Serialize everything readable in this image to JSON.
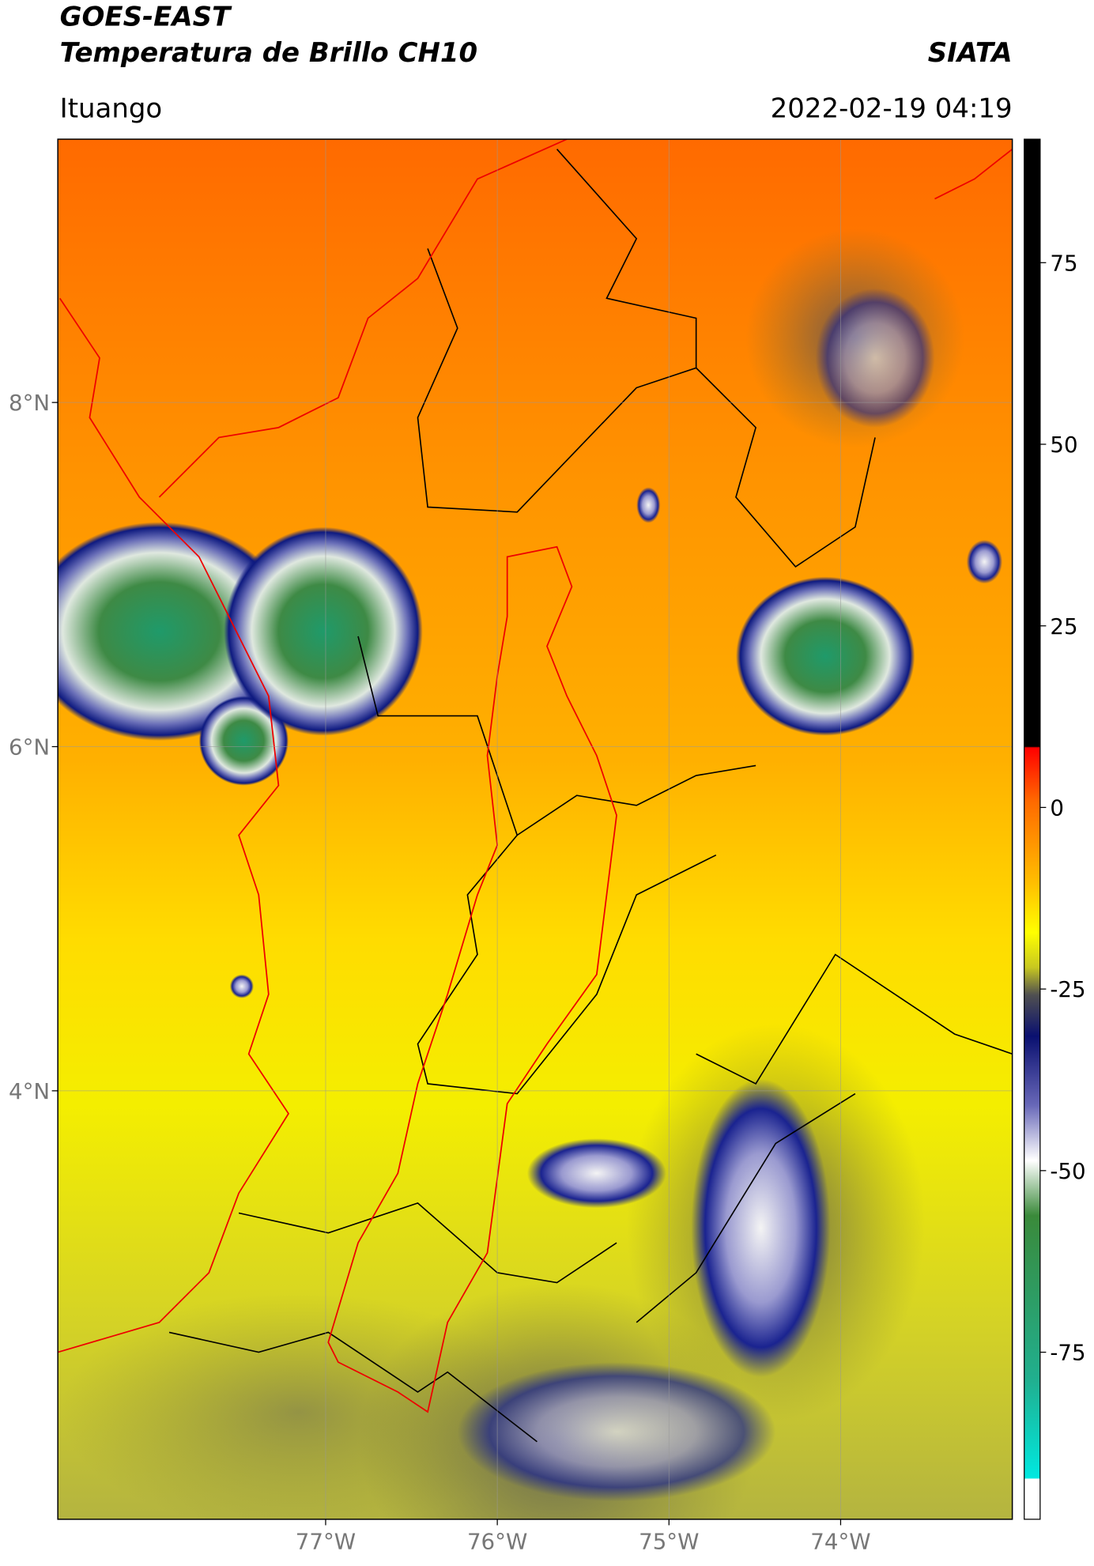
{
  "chart_data": {
    "type": "map",
    "title": "GOES-EAST",
    "subtitle": "Temperatura de Brillo CH10",
    "source": "SIATA",
    "location": "Ituango",
    "date": "2022-02-19 04:19",
    "xlim": [
      -78.56,
      -73.0
    ],
    "ylim": [
      1.51,
      9.53
    ],
    "xticks": [
      {
        "value": -77,
        "label": "77°W"
      },
      {
        "value": -76,
        "label": "76°W"
      },
      {
        "value": -75,
        "label": "75°W"
      },
      {
        "value": -74,
        "label": "74°W"
      }
    ],
    "yticks": [
      {
        "value": 8,
        "label": "8°N"
      },
      {
        "value": 6,
        "label": "6°N"
      },
      {
        "value": 4,
        "label": "4°N"
      }
    ],
    "grid": true,
    "colorbar": {
      "lim": [
        -98,
        92
      ],
      "ticks": [
        75,
        50,
        25,
        0,
        -25,
        -50,
        -75
      ]
    }
  }
}
